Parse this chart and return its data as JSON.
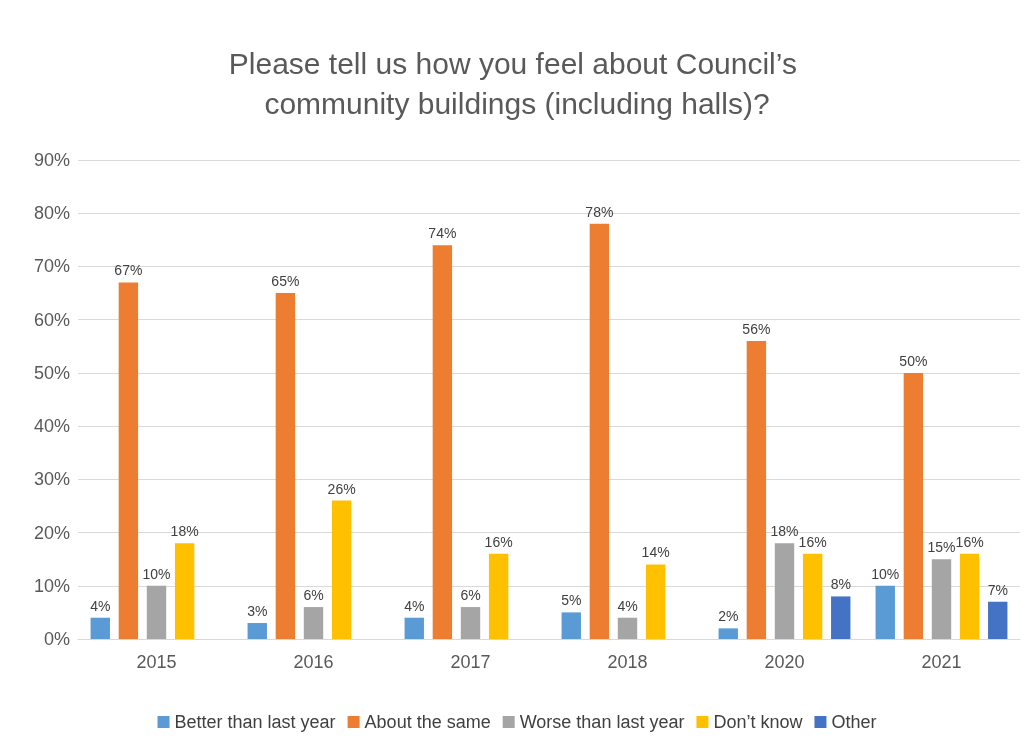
{
  "chart_data": {
    "type": "bar",
    "title": "Please tell us how you feel about Council’s community buildings (including halls)?",
    "categories": [
      "2015",
      "2016",
      "2017",
      "2018",
      "2020",
      "2021"
    ],
    "series": [
      {
        "name": "Better than last year",
        "color": "#5b9bd5",
        "values": [
          4,
          3,
          4,
          5,
          2,
          10
        ],
        "value_labels": [
          "4%",
          "3%",
          "4%",
          "5%",
          "2%",
          "10%"
        ]
      },
      {
        "name": "About the same",
        "color": "#ed7d31",
        "values": [
          67,
          65,
          74,
          78,
          56,
          50
        ],
        "value_labels": [
          "67%",
          "65%",
          "74%",
          "78%",
          "56%",
          "50%"
        ]
      },
      {
        "name": "Worse than last year",
        "color": "#a5a5a5",
        "values": [
          10,
          6,
          6,
          4,
          18,
          15
        ],
        "value_labels": [
          "10%",
          "6%",
          "6%",
          "4%",
          "18%",
          "15%"
        ]
      },
      {
        "name": "Don’t know",
        "color": "#ffc000",
        "values": [
          18,
          26,
          16,
          14,
          16,
          16
        ],
        "value_labels": [
          "18%",
          "26%",
          "16%",
          "14%",
          "16%",
          "16%"
        ]
      },
      {
        "name": "Other",
        "color": "#4472c4",
        "values": [
          null,
          null,
          null,
          null,
          8,
          7
        ],
        "value_labels": [
          null,
          null,
          null,
          null,
          "8%",
          "7%"
        ]
      }
    ],
    "ylim": [
      0,
      90
    ],
    "yticks": [
      {
        "value": 0,
        "label": "0%"
      },
      {
        "value": 10,
        "label": "10%"
      },
      {
        "value": 20,
        "label": "20%"
      },
      {
        "value": 30,
        "label": "30%"
      },
      {
        "value": 40,
        "label": "40%"
      },
      {
        "value": 50,
        "label": "50%"
      },
      {
        "value": 60,
        "label": "60%"
      },
      {
        "value": 70,
        "label": "70%"
      },
      {
        "value": 80,
        "label": "80%"
      },
      {
        "value": 90,
        "label": "90%"
      }
    ],
    "grid": "y",
    "legend": "bottom"
  }
}
